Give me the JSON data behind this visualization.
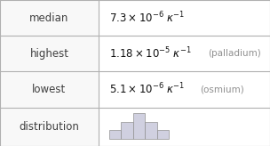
{
  "rows": [
    {
      "label": "median",
      "formula": "$7.3\\times10^{-6}$\\,$\\kappa^{-1}$",
      "note": ""
    },
    {
      "label": "highest",
      "formula": "$1.18\\times10^{-5}$\\,$\\kappa^{-1}$",
      "note": "(palladium)"
    },
    {
      "label": "lowest",
      "formula": "$5.1\\times10^{-6}$\\,$\\kappa^{-1}$",
      "note": "(osmium)"
    },
    {
      "label": "distribution",
      "formula": "",
      "note": ""
    }
  ],
  "col_split": 0.365,
  "border_color": "#b0b0b0",
  "bg_color": "#f5f5f5",
  "cell_bg": "#f8f8f8",
  "label_color": "#404040",
  "value_color": "#111111",
  "note_color": "#909090",
  "hist_bar_color": "#d0d0e0",
  "hist_bar_edge": "#909090",
  "hist_heights": [
    1,
    2,
    3,
    2,
    1
  ],
  "row_tops": [
    1.0,
    0.755,
    0.51,
    0.265,
    0.0
  ],
  "label_fontsize": 8.5,
  "value_fontsize": 8.5,
  "note_fontsize": 7.5
}
